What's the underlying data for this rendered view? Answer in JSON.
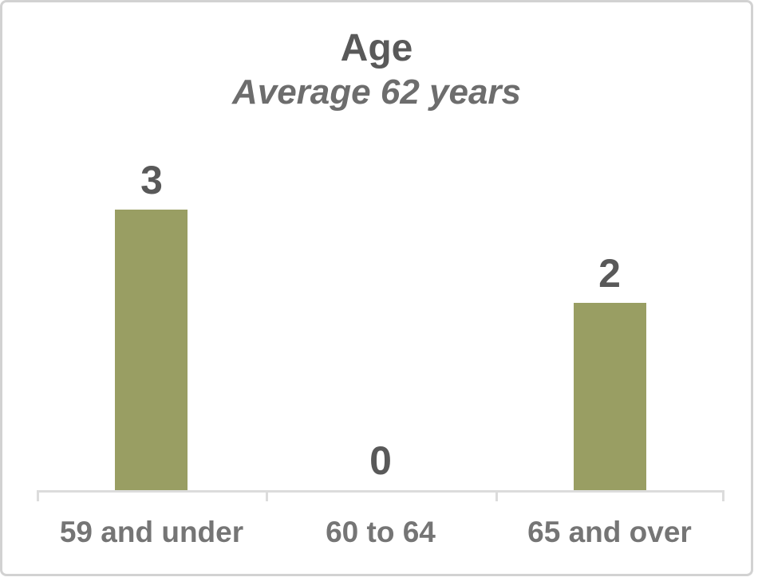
{
  "chart_data": {
    "type": "bar",
    "title": "Age",
    "subtitle": "Average 62 years",
    "categories": [
      "59 and under",
      "60 to 64",
      "65 and over"
    ],
    "values": [
      3,
      0,
      2
    ],
    "xlabel": "",
    "ylabel": "",
    "ylim": [
      0,
      3
    ],
    "grid": false,
    "legend": false,
    "data_labels_position": "outside-end",
    "colors": {
      "bar_fill": "#999e63",
      "axis_line": "#dcdcdc",
      "title_text": "#595959",
      "subtitle_text": "#6d6d6d",
      "data_label_text": "#595959",
      "category_label_text": "#757575",
      "frame_border": "#d2d2d2"
    }
  }
}
